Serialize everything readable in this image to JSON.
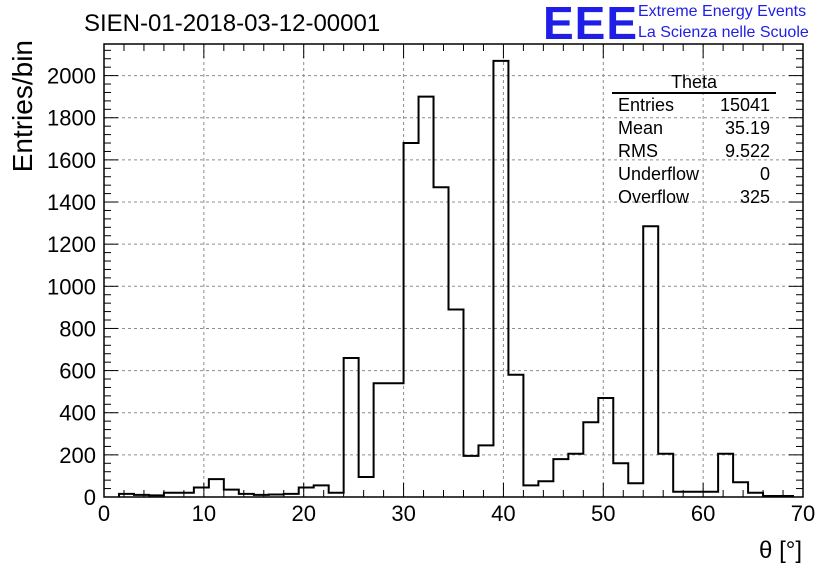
{
  "header": {
    "title": "SIEN-01-2018-03-12-00001",
    "logo_text": "EEE",
    "logo_line1": "Extreme Energy Events",
    "logo_line2": "La Scienza nelle Scuole"
  },
  "stats_box": {
    "title": "Theta",
    "rows": [
      {
        "label": "Entries",
        "value": "15041"
      },
      {
        "label": "Mean",
        "value": "35.19"
      },
      {
        "label": "RMS",
        "value": "9.522"
      },
      {
        "label": "Underflow",
        "value": "0"
      },
      {
        "label": "Overflow",
        "value": "325"
      }
    ]
  },
  "colors": {
    "logo": "#1e1ee6",
    "line": "#000000",
    "grid": "#8c8c8c"
  },
  "chart_data": {
    "type": "histogram",
    "xlabel": "θ [°]",
    "ylabel": "Entries/bin",
    "xlim": [
      0,
      70
    ],
    "ylim": [
      0,
      2150
    ],
    "xticks": [
      0,
      10,
      20,
      30,
      40,
      50,
      60,
      70
    ],
    "yticks": [
      0,
      200,
      400,
      600,
      800,
      1000,
      1200,
      1400,
      1600,
      1800,
      2000
    ],
    "grid": true,
    "bin_width": 1.5,
    "bin_start": 1.5,
    "values": [
      15,
      10,
      8,
      20,
      20,
      45,
      85,
      35,
      15,
      10,
      12,
      15,
      45,
      55,
      20,
      660,
      95,
      540,
      540,
      1680,
      1900,
      1470,
      890,
      195,
      245,
      2070,
      580,
      55,
      75,
      180,
      205,
      355,
      470,
      160,
      65,
      1285,
      205,
      25,
      25,
      25,
      205,
      70,
      20,
      5,
      5
    ]
  }
}
